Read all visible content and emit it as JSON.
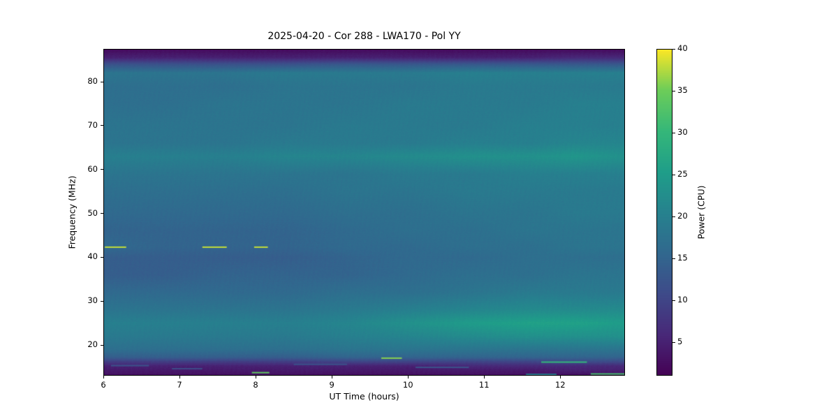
{
  "chart_data": {
    "type": "heatmap",
    "title": "2025-04-20 - Cor 288 - LWA170 - Pol YY",
    "xlabel": "UT Time (hours)",
    "ylabel": "Frequency (MHz)",
    "colorbar_label": "Power (CPU)",
    "colormap": "viridis",
    "x_range": [
      6.0,
      12.85
    ],
    "y_range": [
      13.0,
      87.5
    ],
    "value_range": [
      1,
      40
    ],
    "x_ticks": [
      6,
      7,
      8,
      9,
      10,
      11,
      12
    ],
    "y_ticks": [
      20,
      30,
      40,
      50,
      60,
      70,
      80
    ],
    "colorbar_ticks": [
      5,
      10,
      15,
      20,
      25,
      30,
      35,
      40
    ],
    "time_bins": [
      6.0,
      6.8,
      7.6,
      8.4,
      9.2,
      10.0,
      10.8,
      11.6,
      12.2,
      12.85
    ],
    "freq_bins": [
      13.2,
      14.2,
      15.2,
      16.2,
      17.2,
      19,
      22,
      25,
      28,
      32,
      36,
      40,
      42.3,
      46,
      50,
      55,
      59,
      63,
      66,
      70,
      75,
      79,
      82,
      84,
      85.5,
      87.5
    ],
    "power_grid": [
      [
        3,
        3,
        3,
        3,
        3,
        3,
        3,
        3,
        3,
        3
      ],
      [
        4,
        4,
        4,
        4,
        4,
        4,
        4,
        4,
        5,
        5
      ],
      [
        5,
        5,
        5,
        5,
        5,
        5,
        6,
        6,
        6,
        6
      ],
      [
        9,
        9,
        9,
        9,
        10,
        10,
        10,
        10,
        11,
        11
      ],
      [
        14,
        14,
        14,
        14,
        15,
        15,
        15,
        15,
        15,
        15
      ],
      [
        17,
        17,
        17,
        17,
        18,
        18,
        18,
        18,
        18,
        18
      ],
      [
        19,
        19,
        19,
        19,
        20,
        21,
        22,
        23,
        23,
        23
      ],
      [
        20,
        20,
        20,
        20,
        21,
        23,
        25,
        26,
        26,
        25
      ],
      [
        18,
        18,
        18,
        18,
        19,
        20,
        21,
        22,
        22,
        22
      ],
      [
        16,
        16,
        16,
        16,
        17,
        17,
        18,
        19,
        19,
        19
      ],
      [
        14,
        14,
        15,
        15,
        15,
        16,
        17,
        17,
        18,
        18
      ],
      [
        14,
        14,
        14,
        14,
        15,
        16,
        16,
        17,
        17,
        17
      ],
      [
        16,
        15,
        15,
        15,
        16,
        16,
        17,
        17,
        18,
        18
      ],
      [
        15,
        15,
        15,
        15,
        16,
        17,
        17,
        18,
        18,
        18
      ],
      [
        16,
        16,
        16,
        16,
        17,
        17,
        18,
        18,
        19,
        19
      ],
      [
        17,
        17,
        17,
        17,
        18,
        18,
        19,
        19,
        19,
        19
      ],
      [
        18,
        18,
        18,
        18,
        18,
        19,
        19,
        20,
        20,
        20
      ],
      [
        20,
        20,
        20,
        21,
        21,
        22,
        23,
        23,
        24,
        23
      ],
      [
        18,
        18,
        18,
        19,
        19,
        19,
        20,
        20,
        21,
        21
      ],
      [
        18,
        18,
        18,
        18,
        19,
        19,
        19,
        20,
        20,
        20
      ],
      [
        17,
        17,
        18,
        18,
        18,
        19,
        19,
        19,
        20,
        20
      ],
      [
        17,
        17,
        17,
        18,
        18,
        18,
        19,
        19,
        19,
        19
      ],
      [
        18,
        18,
        18,
        19,
        19,
        19,
        20,
        20,
        20,
        20
      ],
      [
        12,
        12,
        12,
        12,
        13,
        13,
        13,
        13,
        13,
        13
      ],
      [
        5,
        5,
        5,
        5,
        5,
        5,
        5,
        5,
        6,
        6
      ],
      [
        2,
        2,
        2,
        2,
        2,
        2,
        2,
        2,
        2,
        2
      ]
    ],
    "rfi_events": [
      {
        "t0": 6.02,
        "t1": 6.3,
        "freq": 42.3,
        "power": 38
      },
      {
        "t0": 7.3,
        "t1": 7.62,
        "freq": 42.3,
        "power": 38
      },
      {
        "t0": 7.98,
        "t1": 8.16,
        "freq": 42.3,
        "power": 38
      },
      {
        "t0": 9.65,
        "t1": 9.92,
        "freq": 17.0,
        "power": 36
      },
      {
        "t0": 7.95,
        "t1": 8.18,
        "freq": 13.7,
        "power": 34
      },
      {
        "t0": 11.75,
        "t1": 12.35,
        "freq": 16.1,
        "power": 30
      },
      {
        "t0": 12.4,
        "t1": 12.85,
        "freq": 13.4,
        "power": 32
      },
      {
        "t0": 11.55,
        "t1": 11.95,
        "freq": 13.3,
        "power": 20
      },
      {
        "t0": 6.1,
        "t1": 6.6,
        "freq": 15.3,
        "power": 12
      },
      {
        "t0": 8.5,
        "t1": 9.2,
        "freq": 15.6,
        "power": 12
      },
      {
        "t0": 10.1,
        "t1": 10.8,
        "freq": 14.9,
        "power": 12
      },
      {
        "t0": 6.9,
        "t1": 7.3,
        "freq": 14.6,
        "power": 11
      }
    ]
  }
}
